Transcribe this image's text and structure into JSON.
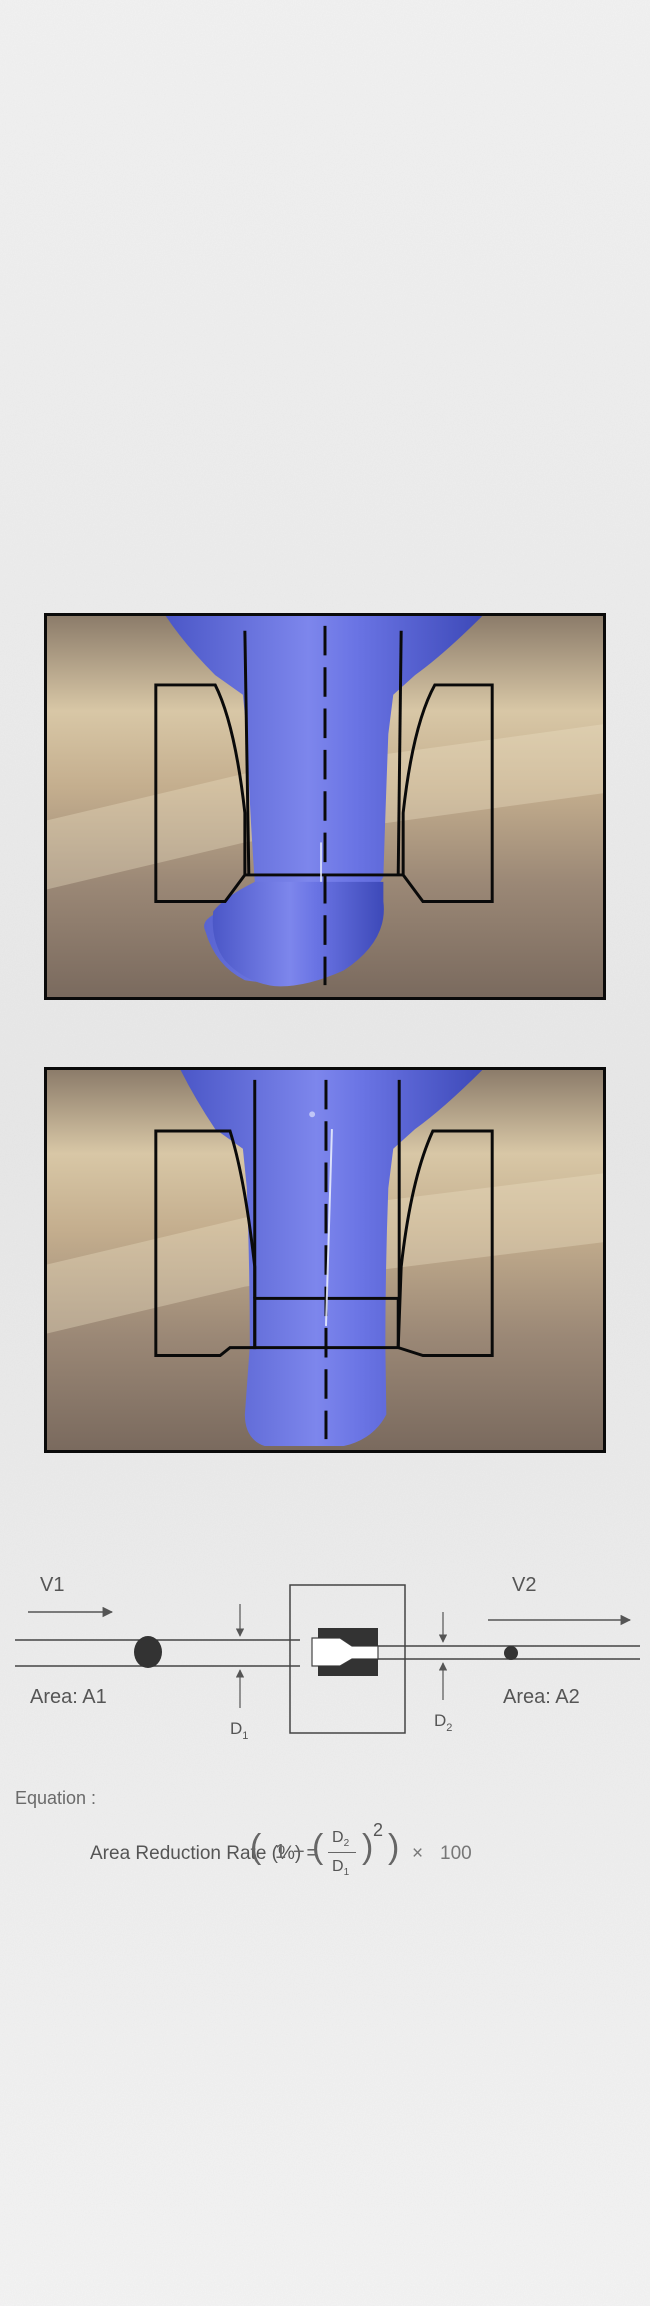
{
  "diagram": {
    "labels": {
      "v1": "V1",
      "v2": "V2",
      "area_a1": "Area: A1",
      "area_a2": "Area: A2",
      "d1": "D",
      "d1_sub": "1",
      "d2": "D",
      "d2_sub": "2"
    }
  },
  "equation": {
    "heading": "Equation :",
    "lhs": "Area Reduction Rate (%)  =",
    "one": "1",
    "minus": "−",
    "num": "D",
    "num_sub": "2",
    "den": "D",
    "den_sub": "1",
    "exponent": "2",
    "times": "×",
    "factor": "100"
  },
  "colors": {
    "background": "#ececec",
    "billet": "#6670e0",
    "die_outline": "#0a0a0a",
    "text": "#555555"
  }
}
